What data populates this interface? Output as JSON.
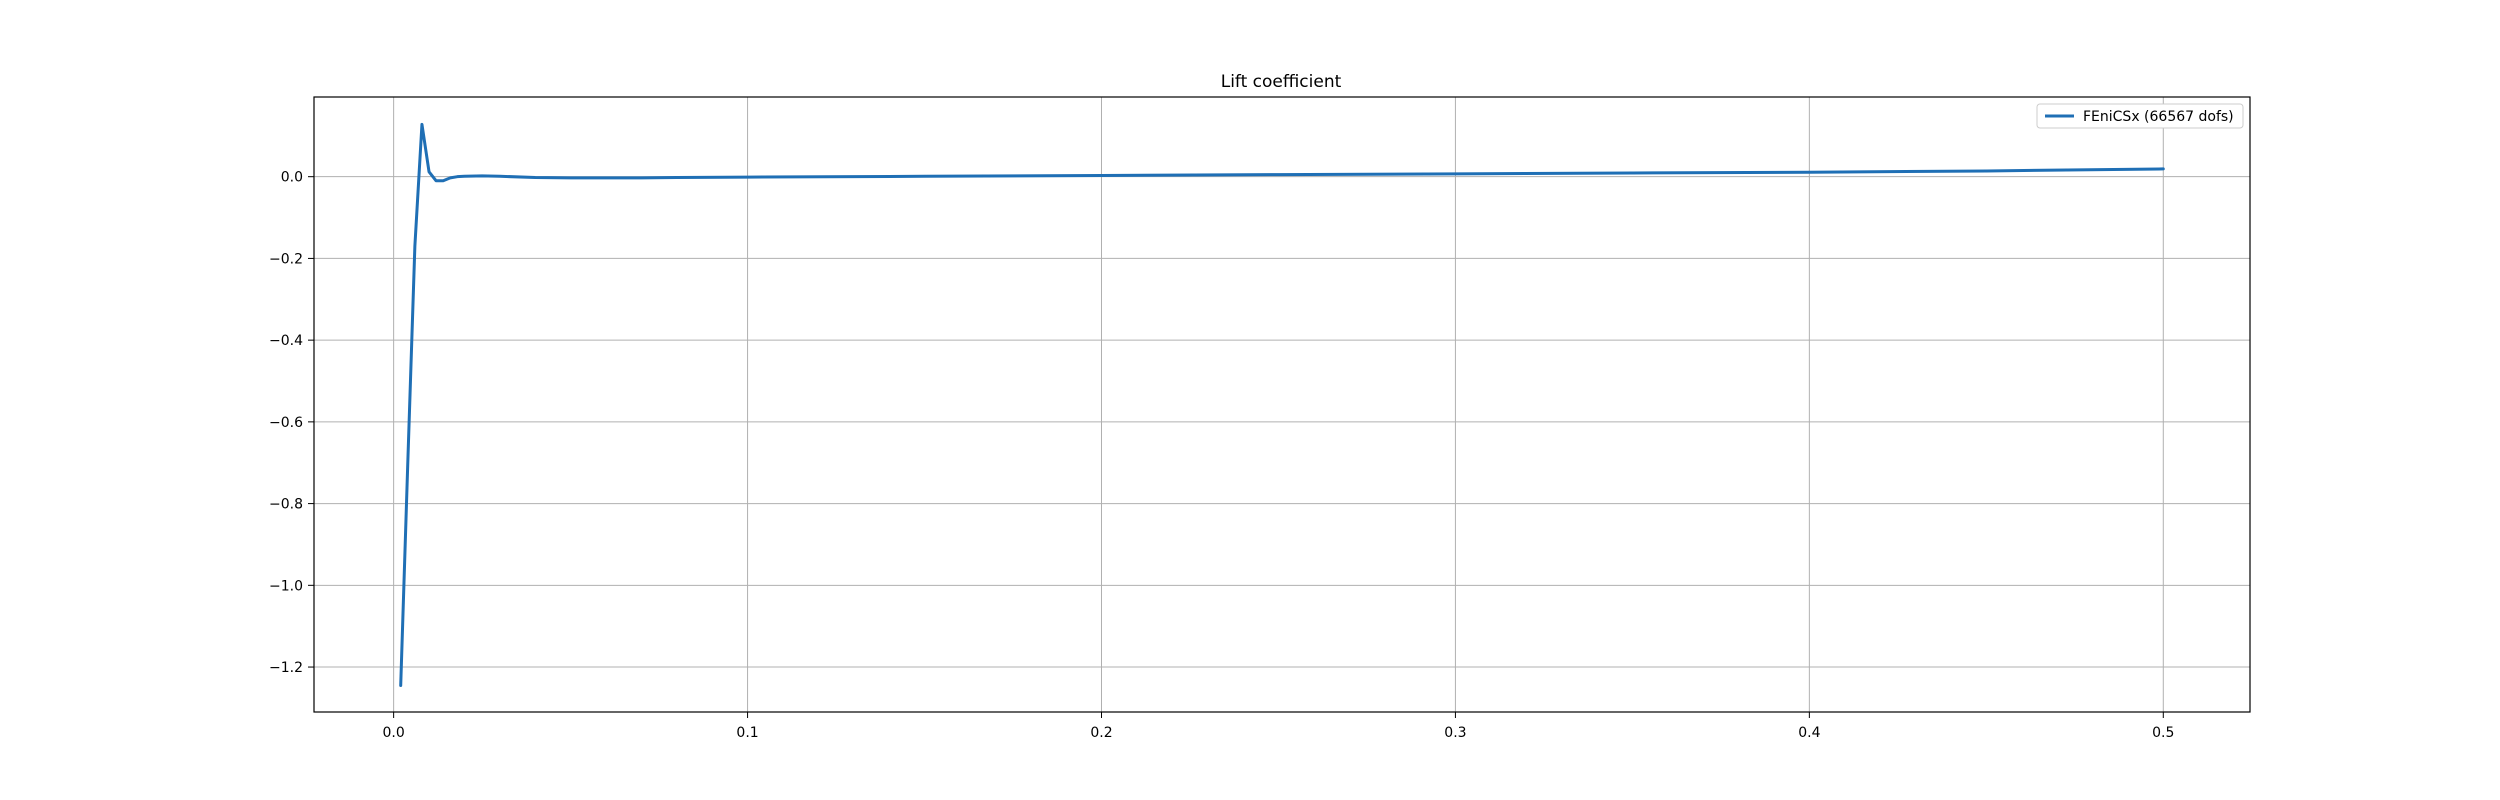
{
  "chart_data": {
    "type": "line",
    "title": "Lift coefficient",
    "xlabel": "",
    "ylabel": "",
    "xlim": [
      -0.0225,
      0.5245
    ],
    "ylim": [
      -1.31,
      0.195
    ],
    "x_ticks": [
      0.0,
      0.1,
      0.2,
      0.3,
      0.4,
      0.5
    ],
    "x_tick_labels": [
      "0.0",
      "0.1",
      "0.2",
      "0.3",
      "0.4",
      "0.5"
    ],
    "y_ticks": [
      0.0,
      -0.2,
      -0.4,
      -0.6,
      -0.8,
      -1.0,
      -1.2
    ],
    "y_tick_labels": [
      "0.0",
      "−0.2",
      "−0.4",
      "−0.6",
      "−0.8",
      "−1.0",
      "−1.2"
    ],
    "grid": true,
    "legend_position": "top-right",
    "colors": {
      "series": "#1f6fb5",
      "grid": "#b0b0b0",
      "axes": "#000000"
    },
    "series": [
      {
        "name": "FEniCSx  (66567 dofs)",
        "x": [
          0.002,
          0.004,
          0.006,
          0.008,
          0.01,
          0.012,
          0.014,
          0.016,
          0.018,
          0.02,
          0.025,
          0.03,
          0.04,
          0.05,
          0.06,
          0.07,
          0.08,
          0.1,
          0.15,
          0.2,
          0.25,
          0.3,
          0.35,
          0.4,
          0.45,
          0.5
        ],
        "y": [
          -1.245,
          -0.7,
          -0.17,
          0.128,
          0.012,
          -0.01,
          -0.01,
          -0.003,
          0.0,
          0.001,
          0.002,
          0.001,
          -0.002,
          -0.003,
          -0.003,
          -0.003,
          -0.002,
          -0.001,
          0.001,
          0.003,
          0.005,
          0.007,
          0.009,
          0.011,
          0.014,
          0.019
        ]
      }
    ]
  }
}
